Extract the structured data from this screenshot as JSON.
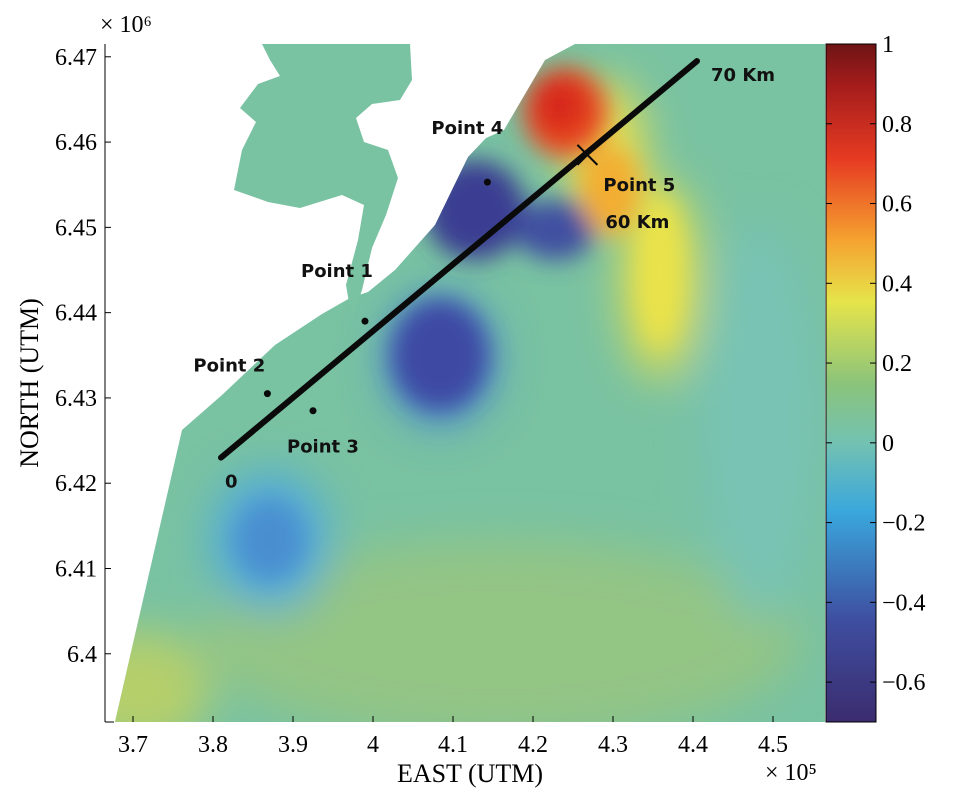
{
  "chart_data": {
    "type": "heatmap",
    "xlabel": "EAST (UTM)",
    "ylabel": "NORTH (UTM)",
    "x_exponent": "× 10⁵",
    "y_exponent": "× 10⁶",
    "x_ticks": [
      "3.7",
      "3.8",
      "3.9",
      "4",
      "4.1",
      "4.2",
      "4.3",
      "4.4",
      "4.5"
    ],
    "x_tick_values": [
      3.7,
      3.8,
      3.9,
      4.0,
      4.1,
      4.2,
      4.3,
      4.4,
      4.5
    ],
    "y_ticks": [
      "6.4",
      "6.41",
      "6.42",
      "6.43",
      "6.44",
      "6.45",
      "6.46",
      "6.47"
    ],
    "y_tick_values": [
      6.4,
      6.41,
      6.42,
      6.43,
      6.44,
      6.45,
      6.46,
      6.47
    ],
    "xlim": [
      3.665,
      4.565
    ],
    "ylim": [
      6.392,
      6.4715
    ],
    "colorbar": {
      "ticks": [
        "1",
        "0.8",
        "0.6",
        "0.4",
        "0.2",
        "0",
        "−0.2",
        "−0.4",
        "−0.6"
      ],
      "tick_values": [
        1,
        0.8,
        0.6,
        0.4,
        0.2,
        0,
        -0.2,
        -0.4,
        -0.6
      ],
      "range": [
        -0.7,
        1.0
      ],
      "colormap": [
        "#3b2c6e",
        "#3e4ea0",
        "#3aa7dc",
        "#72c1b2",
        "#8bc47a",
        "#e6e44a",
        "#f5a331",
        "#e63b22",
        "#6e1414"
      ]
    },
    "transect": {
      "start": [
        3.81,
        6.423
      ],
      "end": [
        4.405,
        6.4695
      ],
      "start_label": "0",
      "end_label": "70 Km",
      "mark_label": "60 Km",
      "mark_point": [
        4.268,
        6.4585
      ]
    },
    "points": [
      {
        "label": "Point 1",
        "x": 3.99,
        "y": 6.439
      },
      {
        "label": "Point 2",
        "x": 3.868,
        "y": 6.4305
      },
      {
        "label": "Point 3",
        "x": 3.925,
        "y": 6.4285
      },
      {
        "label": "Point 4",
        "x": 4.143,
        "y": 6.4553
      },
      {
        "label": "Point 5",
        "x": 4.268,
        "y": 6.4585
      }
    ],
    "grid": false,
    "legend": "colorbar-right"
  }
}
